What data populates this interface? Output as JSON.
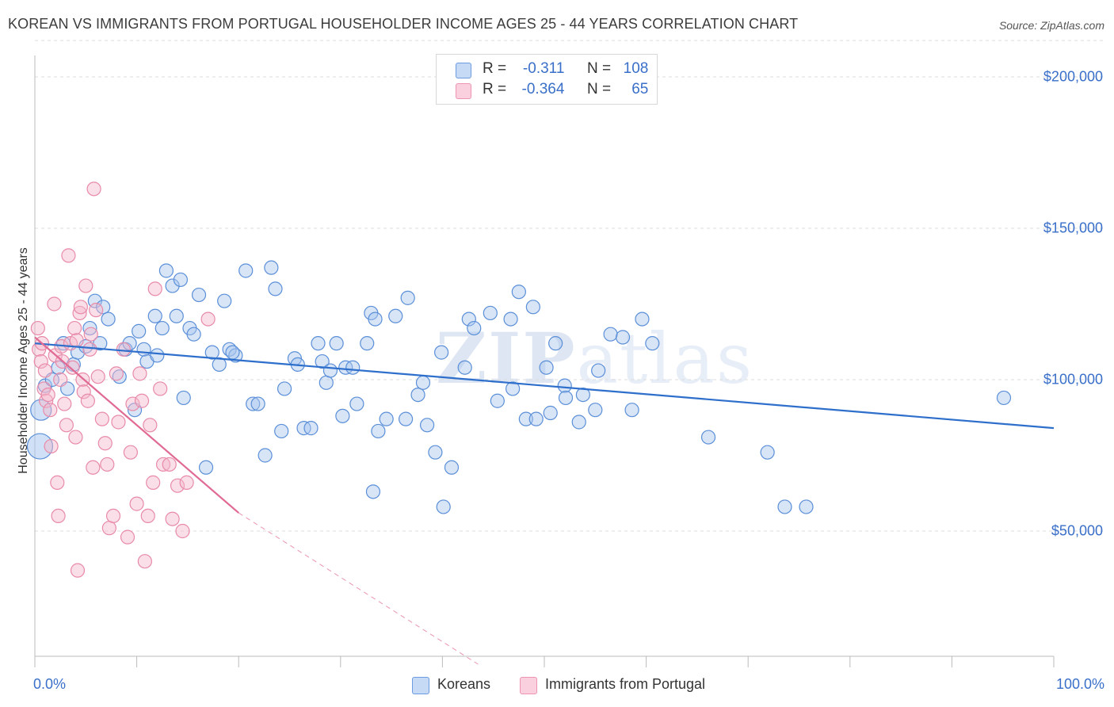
{
  "title": "KOREAN VS IMMIGRANTS FROM PORTUGAL HOUSEHOLDER INCOME AGES 25 - 44 YEARS CORRELATION CHART",
  "source": "Source: ZipAtlas.com",
  "watermark": {
    "zip": "ZIP",
    "atlas": "atlas"
  },
  "legend": {
    "rows": [
      {
        "r_label": "R =",
        "r_value": "-0.311",
        "n_label": "N =",
        "n_value": "108",
        "color": "#a9c6ee"
      },
      {
        "r_label": "R =",
        "r_value": "-0.364",
        "n_label": "N =",
        "n_value": "65",
        "color": "#f5b8cb"
      }
    ]
  },
  "bottom_legend": [
    {
      "label": "Koreans",
      "color": "#a9c6ee"
    },
    {
      "label": "Immigrants from Portugal",
      "color": "#f5b8cb"
    }
  ],
  "chart_data": {
    "type": "scatter",
    "title": "KOREAN VS IMMIGRANTS FROM PORTUGAL HOUSEHOLDER INCOME AGES 25 - 44 YEARS CORRELATION CHART",
    "xlabel": "",
    "ylabel": "Householder Income Ages 25 - 44 years",
    "xlim": [
      0,
      100
    ],
    "ylim": [
      5000,
      215000
    ],
    "x_tick_labels": [
      "0.0%",
      "100.0%"
    ],
    "y_ticks": [
      50000,
      100000,
      150000,
      200000
    ],
    "y_tick_labels": [
      "$50,000",
      "$100,000",
      "$150,000",
      "$200,000"
    ],
    "grid": true,
    "legend_placement": "top-center",
    "series": [
      {
        "name": "Koreans",
        "color": "#5b8fd8",
        "fill": "#a9c6ee",
        "trend": {
          "x": [
            0,
            100
          ],
          "y": [
            112000,
            84000
          ],
          "color": "#2e6fcc"
        },
        "points": [
          [
            0.5,
            78000
          ],
          [
            0.6,
            90000
          ],
          [
            1.0,
            98000
          ],
          [
            1.7,
            100000
          ],
          [
            2.3,
            104000
          ],
          [
            2.8,
            112000
          ],
          [
            3.2,
            97000
          ],
          [
            3.8,
            105000
          ],
          [
            4.2,
            109000
          ],
          [
            5.0,
            111000
          ],
          [
            5.4,
            117000
          ],
          [
            5.9,
            126000
          ],
          [
            6.4,
            112000
          ],
          [
            6.7,
            124000
          ],
          [
            7.2,
            120000
          ],
          [
            8.3,
            101000
          ],
          [
            8.9,
            110000
          ],
          [
            9.3,
            112000
          ],
          [
            9.8,
            90000
          ],
          [
            10.2,
            116000
          ],
          [
            10.7,
            110000
          ],
          [
            11.0,
            106000
          ],
          [
            11.8,
            121000
          ],
          [
            12.0,
            108000
          ],
          [
            12.5,
            117000
          ],
          [
            12.9,
            136000
          ],
          [
            13.5,
            131000
          ],
          [
            13.9,
            121000
          ],
          [
            14.3,
            133000
          ],
          [
            14.6,
            94000
          ],
          [
            15.2,
            117000
          ],
          [
            15.6,
            115000
          ],
          [
            16.1,
            128000
          ],
          [
            16.8,
            71000
          ],
          [
            17.4,
            109000
          ],
          [
            18.1,
            105000
          ],
          [
            18.6,
            126000
          ],
          [
            19.1,
            110000
          ],
          [
            19.7,
            108000
          ],
          [
            19.4,
            109000
          ],
          [
            20.7,
            136000
          ],
          [
            21.4,
            92000
          ],
          [
            21.9,
            92000
          ],
          [
            22.6,
            75000
          ],
          [
            23.2,
            137000
          ],
          [
            23.6,
            130000
          ],
          [
            24.2,
            83000
          ],
          [
            24.5,
            97000
          ],
          [
            25.5,
            107000
          ],
          [
            25.8,
            105000
          ],
          [
            26.4,
            84000
          ],
          [
            27.1,
            84000
          ],
          [
            27.8,
            112000
          ],
          [
            28.2,
            106000
          ],
          [
            28.6,
            99000
          ],
          [
            29.0,
            103000
          ],
          [
            29.6,
            112000
          ],
          [
            30.2,
            88000
          ],
          [
            30.5,
            104000
          ],
          [
            31.2,
            104000
          ],
          [
            31.6,
            92000
          ],
          [
            32.6,
            112000
          ],
          [
            33.0,
            122000
          ],
          [
            33.4,
            120000
          ],
          [
            33.7,
            83000
          ],
          [
            33.2,
            63000
          ],
          [
            34.5,
            87000
          ],
          [
            35.4,
            121000
          ],
          [
            36.4,
            87000
          ],
          [
            36.6,
            127000
          ],
          [
            37.6,
            95000
          ],
          [
            38.1,
            99000
          ],
          [
            38.5,
            85000
          ],
          [
            39.3,
            76000
          ],
          [
            39.9,
            109000
          ],
          [
            40.1,
            58000
          ],
          [
            40.9,
            71000
          ],
          [
            42.2,
            104000
          ],
          [
            42.6,
            120000
          ],
          [
            43.1,
            117000
          ],
          [
            44.7,
            122000
          ],
          [
            45.4,
            93000
          ],
          [
            46.7,
            120000
          ],
          [
            46.9,
            97000
          ],
          [
            47.5,
            129000
          ],
          [
            48.2,
            87000
          ],
          [
            48.9,
            124000
          ],
          [
            49.2,
            87000
          ],
          [
            50.2,
            104000
          ],
          [
            50.6,
            89000
          ],
          [
            51.1,
            112000
          ],
          [
            52.0,
            98000
          ],
          [
            52.1,
            94000
          ],
          [
            53.4,
            86000
          ],
          [
            53.8,
            95000
          ],
          [
            55.0,
            90000
          ],
          [
            55.3,
            103000
          ],
          [
            56.5,
            115000
          ],
          [
            57.7,
            114000
          ],
          [
            58.6,
            90000
          ],
          [
            59.6,
            120000
          ],
          [
            60.6,
            112000
          ],
          [
            66.1,
            81000
          ],
          [
            71.9,
            76000
          ],
          [
            73.6,
            58000
          ],
          [
            75.7,
            58000
          ],
          [
            95.1,
            94000
          ]
        ]
      },
      {
        "name": "Immigrants from Portugal",
        "color": "#e88aa8",
        "fill": "#f5b8cb",
        "trend": {
          "x": [
            0,
            20
          ],
          "y": [
            114000,
            56000
          ],
          "color": "#e06a94",
          "dashed_extension": {
            "x": [
              20,
              43.5
            ],
            "y": [
              56000,
              -11000
            ]
          }
        },
        "points": [
          [
            0.3,
            117000
          ],
          [
            0.4,
            110000
          ],
          [
            0.6,
            106000
          ],
          [
            0.7,
            112000
          ],
          [
            0.9,
            97000
          ],
          [
            1.0,
            103000
          ],
          [
            1.1,
            93000
          ],
          [
            1.3,
            95000
          ],
          [
            1.5,
            90000
          ],
          [
            1.6,
            78000
          ],
          [
            1.9,
            125000
          ],
          [
            2.0,
            108000
          ],
          [
            2.2,
            66000
          ],
          [
            2.3,
            55000
          ],
          [
            2.5,
            100000
          ],
          [
            2.6,
            111000
          ],
          [
            2.7,
            106000
          ],
          [
            2.9,
            92000
          ],
          [
            3.1,
            85000
          ],
          [
            3.3,
            141000
          ],
          [
            3.5,
            112000
          ],
          [
            3.7,
            104000
          ],
          [
            3.9,
            117000
          ],
          [
            4.0,
            81000
          ],
          [
            4.1,
            113000
          ],
          [
            4.2,
            37000
          ],
          [
            4.4,
            122000
          ],
          [
            4.5,
            124000
          ],
          [
            4.7,
            100000
          ],
          [
            4.8,
            96000
          ],
          [
            5.0,
            131000
          ],
          [
            5.2,
            93000
          ],
          [
            5.4,
            110000
          ],
          [
            5.5,
            115000
          ],
          [
            5.7,
            71000
          ],
          [
            5.8,
            163000
          ],
          [
            6.0,
            123000
          ],
          [
            6.2,
            101000
          ],
          [
            6.6,
            87000
          ],
          [
            6.9,
            79000
          ],
          [
            7.1,
            72000
          ],
          [
            7.3,
            51000
          ],
          [
            7.7,
            55000
          ],
          [
            8.0,
            102000
          ],
          [
            8.2,
            86000
          ],
          [
            8.7,
            110000
          ],
          [
            9.1,
            48000
          ],
          [
            9.4,
            76000
          ],
          [
            9.6,
            92000
          ],
          [
            10.0,
            59000
          ],
          [
            10.3,
            102000
          ],
          [
            10.5,
            93000
          ],
          [
            10.8,
            40000
          ],
          [
            11.1,
            55000
          ],
          [
            11.3,
            85000
          ],
          [
            11.6,
            66000
          ],
          [
            11.8,
            130000
          ],
          [
            12.3,
            97000
          ],
          [
            12.6,
            72000
          ],
          [
            13.2,
            72000
          ],
          [
            13.5,
            54000
          ],
          [
            14.0,
            65000
          ],
          [
            14.5,
            50000
          ],
          [
            14.9,
            66000
          ],
          [
            17.0,
            120000
          ]
        ]
      }
    ]
  }
}
